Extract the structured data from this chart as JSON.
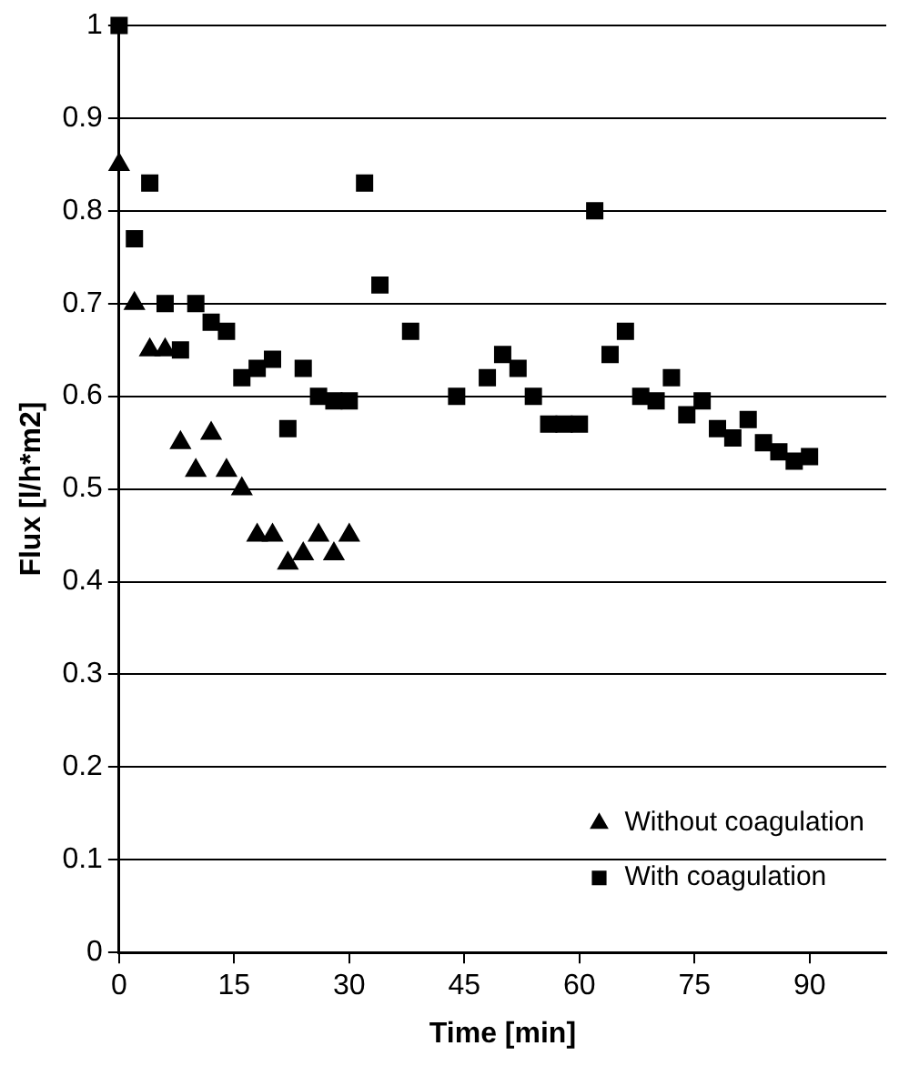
{
  "chart_data": {
    "type": "scatter",
    "xlabel": "Time [min]",
    "ylabel": "Flux [l/h*m2]",
    "xlim": [
      0,
      100
    ],
    "xticks": [
      0,
      15,
      30,
      45,
      60,
      75,
      90
    ],
    "ylim": [
      0,
      1
    ],
    "yticks": [
      0,
      0.1,
      0.2,
      0.3,
      0.4,
      0.5,
      0.6,
      0.7,
      0.8,
      0.9,
      1
    ],
    "grid": "y",
    "legend": "bottom right",
    "series": [
      {
        "name": "Without coagulation",
        "color": "#000000",
        "marker": "triangle",
        "x": [
          0,
          2,
          4,
          6,
          8,
          10,
          12,
          14,
          16,
          18,
          20,
          22,
          24,
          26,
          28,
          30
        ],
        "values": [
          0.85,
          0.7,
          0.65,
          0.65,
          0.55,
          0.52,
          0.56,
          0.52,
          0.5,
          0.45,
          0.45,
          0.42,
          0.43,
          0.45,
          0.43,
          0.45
        ]
      },
      {
        "name": "With coagulation",
        "color": "#000000",
        "marker": "square",
        "x": [
          0,
          2,
          4,
          6,
          8,
          10,
          12,
          14,
          16,
          18,
          20,
          22,
          24,
          26,
          28,
          30,
          32,
          34,
          38,
          44,
          48,
          50,
          52,
          54,
          56,
          58,
          60,
          62,
          64,
          66,
          68,
          70,
          72,
          74,
          76,
          78,
          80,
          82,
          84,
          86,
          88,
          90
        ],
        "values": [
          1,
          0.77,
          0.83,
          0.7,
          0.65,
          0.7,
          0.68,
          0.67,
          0.62,
          0.63,
          0.64,
          0.565,
          0.63,
          0.6,
          0.595,
          0.595,
          0.83,
          0.72,
          0.67,
          0.6,
          0.62,
          0.645,
          0.63,
          0.6,
          0.57,
          0.57,
          0.57,
          0.8,
          0.645,
          0.67,
          0.6,
          0.595,
          0.62,
          0.58,
          0.595,
          0.565,
          0.555,
          0.575,
          0.55,
          0.54,
          0.53,
          0.535
        ]
      }
    ]
  }
}
